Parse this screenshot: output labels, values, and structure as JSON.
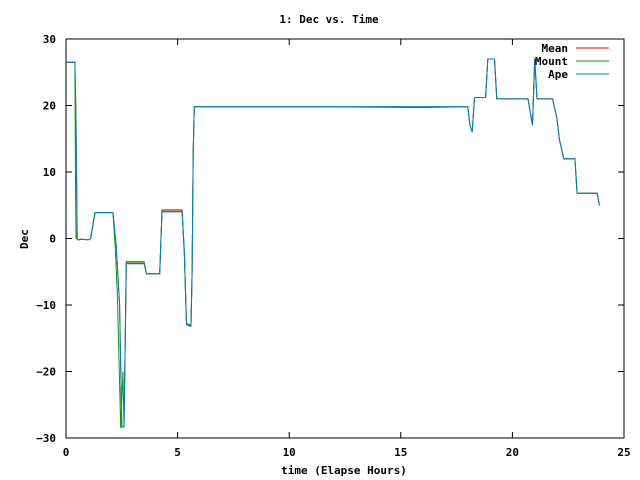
{
  "chart_data": {
    "type": "line",
    "title": "1: Dec vs. Time",
    "xlabel": "time (Elapse Hours)",
    "ylabel": "Dec",
    "xlim": [
      0,
      25
    ],
    "ylim": [
      -30,
      30
    ],
    "x_ticks": [
      0,
      5,
      10,
      15,
      20,
      25
    ],
    "y_ticks": [
      -30,
      -20,
      -10,
      0,
      10,
      20,
      30
    ],
    "x_tick_labels": [
      "0",
      "5",
      "10",
      "15",
      "20",
      "25"
    ],
    "y_tick_labels": [
      "−30",
      "−20",
      "−10",
      "0",
      "10",
      "20",
      "30"
    ],
    "grid": false,
    "legend": "top-right",
    "series": [
      {
        "name": "Mean",
        "color": "#ff0000",
        "points": [
          [
            0.0,
            26.5
          ],
          [
            0.4,
            26.5
          ],
          [
            0.45,
            18.0
          ],
          [
            0.5,
            0.0
          ],
          [
            0.55,
            -0.2
          ],
          [
            0.7,
            -0.1
          ],
          [
            1.0,
            -0.2
          ],
          [
            1.1,
            0.0
          ],
          [
            1.3,
            3.9
          ],
          [
            2.1,
            3.9
          ],
          [
            2.25,
            -1.0
          ],
          [
            2.4,
            -10.0
          ],
          [
            2.5,
            -28.3
          ],
          [
            2.6,
            -28.3
          ],
          [
            2.7,
            -3.5
          ],
          [
            3.5,
            -3.5
          ],
          [
            3.6,
            -5.3
          ],
          [
            4.2,
            -5.3
          ],
          [
            4.3,
            4.3
          ],
          [
            5.2,
            4.3
          ],
          [
            5.3,
            -2.0
          ],
          [
            5.4,
            -13.0
          ],
          [
            5.6,
            -13.1
          ],
          [
            5.65,
            -5.0
          ],
          [
            5.7,
            13.0
          ],
          [
            5.75,
            19.8
          ],
          [
            11.0,
            19.8
          ],
          [
            16.0,
            19.7
          ],
          [
            18.0,
            19.8
          ],
          [
            18.1,
            17.0
          ],
          [
            18.2,
            16.0
          ],
          [
            18.3,
            21.2
          ],
          [
            18.8,
            21.2
          ],
          [
            18.9,
            27.0
          ],
          [
            19.2,
            27.0
          ],
          [
            19.3,
            21.0
          ],
          [
            20.7,
            21.0
          ],
          [
            20.9,
            17.0
          ],
          [
            21.0,
            27.0
          ],
          [
            21.1,
            21.0
          ],
          [
            21.8,
            21.0
          ],
          [
            22.0,
            18.0
          ],
          [
            22.1,
            15.0
          ],
          [
            22.3,
            12.0
          ],
          [
            22.8,
            12.0
          ],
          [
            22.9,
            6.8
          ],
          [
            23.8,
            6.8
          ],
          [
            23.9,
            5.0
          ]
        ]
      },
      {
        "name": "Mount",
        "color": "#00a000",
        "points": [
          [
            0.0,
            26.5
          ],
          [
            0.4,
            26.5
          ],
          [
            0.42,
            10.0
          ],
          [
            0.45,
            0.0
          ],
          [
            0.55,
            -0.2
          ],
          [
            0.7,
            -0.1
          ],
          [
            1.0,
            -0.2
          ],
          [
            1.1,
            0.0
          ],
          [
            1.3,
            3.9
          ],
          [
            2.1,
            3.9
          ],
          [
            2.2,
            -1.0
          ],
          [
            2.3,
            -8.0
          ],
          [
            2.45,
            -28.5
          ],
          [
            2.55,
            -20.0
          ],
          [
            2.6,
            -28.4
          ],
          [
            2.7,
            -3.7
          ],
          [
            3.5,
            -3.7
          ],
          [
            3.6,
            -5.3
          ],
          [
            4.2,
            -5.3
          ],
          [
            4.3,
            4.1
          ],
          [
            5.2,
            4.1
          ],
          [
            5.3,
            -2.0
          ],
          [
            5.4,
            -12.8
          ],
          [
            5.6,
            -13.0
          ],
          [
            5.65,
            -5.0
          ],
          [
            5.7,
            13.0
          ],
          [
            5.75,
            19.8
          ],
          [
            18.0,
            19.8
          ],
          [
            18.1,
            17.0
          ],
          [
            18.2,
            16.0
          ],
          [
            18.3,
            21.2
          ],
          [
            18.8,
            21.2
          ],
          [
            18.9,
            27.0
          ],
          [
            19.2,
            27.0
          ],
          [
            19.3,
            21.0
          ],
          [
            20.7,
            21.0
          ],
          [
            20.9,
            17.0
          ],
          [
            21.0,
            27.0
          ],
          [
            21.1,
            21.0
          ],
          [
            21.8,
            21.0
          ],
          [
            22.0,
            18.0
          ],
          [
            22.1,
            15.0
          ],
          [
            22.3,
            12.0
          ],
          [
            22.8,
            12.0
          ],
          [
            22.9,
            6.8
          ],
          [
            23.8,
            6.8
          ],
          [
            23.9,
            5.0
          ]
        ]
      },
      {
        "name": "Ape",
        "color": "#0080c0",
        "points": [
          [
            0.0,
            26.5
          ],
          [
            0.4,
            26.5
          ],
          [
            0.45,
            18.0
          ],
          [
            0.5,
            0.0
          ],
          [
            0.55,
            -0.2
          ],
          [
            0.7,
            -0.1
          ],
          [
            1.0,
            -0.2
          ],
          [
            1.1,
            0.0
          ],
          [
            1.3,
            3.9
          ],
          [
            2.1,
            3.9
          ],
          [
            2.25,
            -1.0
          ],
          [
            2.4,
            -10.0
          ],
          [
            2.5,
            -28.3
          ],
          [
            2.6,
            -28.3
          ],
          [
            2.7,
            -3.8
          ],
          [
            3.5,
            -3.8
          ],
          [
            3.6,
            -5.3
          ],
          [
            4.2,
            -5.3
          ],
          [
            4.3,
            4.0
          ],
          [
            5.2,
            4.0
          ],
          [
            5.3,
            -2.0
          ],
          [
            5.4,
            -13.0
          ],
          [
            5.6,
            -13.2
          ],
          [
            5.65,
            -5.0
          ],
          [
            5.7,
            13.0
          ],
          [
            5.75,
            19.8
          ],
          [
            18.0,
            19.8
          ],
          [
            18.1,
            17.0
          ],
          [
            18.2,
            16.0
          ],
          [
            18.3,
            21.2
          ],
          [
            18.8,
            21.2
          ],
          [
            18.9,
            27.0
          ],
          [
            19.2,
            27.0
          ],
          [
            19.3,
            21.0
          ],
          [
            20.7,
            21.0
          ],
          [
            20.9,
            17.0
          ],
          [
            21.0,
            27.0
          ],
          [
            21.1,
            21.0
          ],
          [
            21.8,
            21.0
          ],
          [
            22.0,
            18.0
          ],
          [
            22.1,
            15.0
          ],
          [
            22.3,
            12.0
          ],
          [
            22.8,
            12.0
          ],
          [
            22.9,
            6.8
          ],
          [
            23.8,
            6.8
          ],
          [
            23.9,
            5.0
          ]
        ]
      }
    ]
  }
}
